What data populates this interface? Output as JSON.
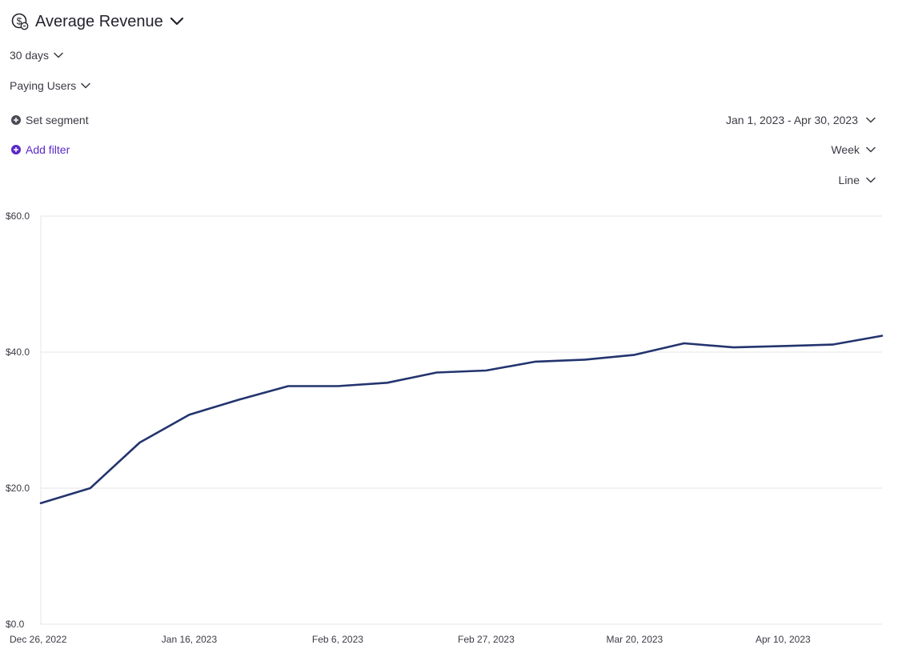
{
  "header": {
    "title": "Average Revenue",
    "title_icon": "dollar-coin-icon"
  },
  "controls": {
    "time_window": "30 days",
    "user_group": "Paying Users",
    "segment_label": "Set segment",
    "filter_label": "Add filter",
    "date_range": "Jan 1, 2023 - Apr 30, 2023",
    "interval": "Week",
    "chart_type": "Line"
  },
  "colors": {
    "line": "#23346e",
    "accent_purple": "#5a28c8",
    "grid": "#e4e4e8"
  },
  "chart_data": {
    "type": "line",
    "title": "",
    "xlabel": "",
    "ylabel": "",
    "ylim": [
      0,
      60
    ],
    "yticks": [
      0,
      20,
      40,
      60
    ],
    "ytick_labels": [
      "$0.0",
      "$20.0",
      "$40.0",
      "$60.0"
    ],
    "xtick_labels": [
      "Dec 26, 2022",
      "Jan 16, 2023",
      "Feb 6, 2023",
      "Feb 27, 2023",
      "Mar 20, 2023",
      "Apr 10, 2023"
    ],
    "xtick_dates": [
      "2022-12-26",
      "2023-01-16",
      "2023-02-06",
      "2023-02-27",
      "2023-03-20",
      "2023-04-10"
    ],
    "grid": true,
    "legend": "none",
    "series": [
      {
        "x": [
          "2022-12-26",
          "2023-01-02",
          "2023-01-09",
          "2023-01-16",
          "2023-01-23",
          "2023-01-30",
          "2023-02-06",
          "2023-02-13",
          "2023-02-20",
          "2023-02-27",
          "2023-03-06",
          "2023-03-13",
          "2023-03-20",
          "2023-03-27",
          "2023-04-03",
          "2023-04-10",
          "2023-04-17",
          "2023-04-24"
        ],
        "values": [
          17.8,
          20.0,
          26.7,
          30.8,
          33.0,
          35.0,
          35.0,
          35.5,
          37.0,
          37.3,
          38.6,
          38.9,
          39.6,
          41.3,
          40.7,
          40.9,
          41.1,
          42.4
        ]
      }
    ]
  }
}
